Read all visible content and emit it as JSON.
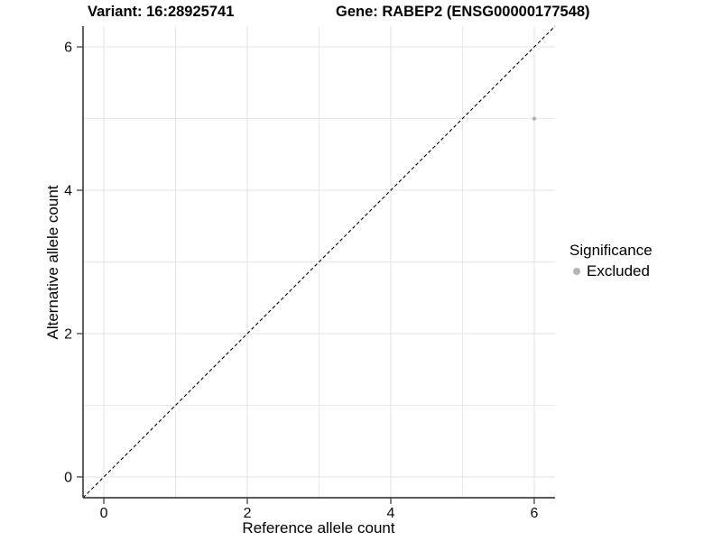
{
  "header": {
    "variant_title": "Variant: 16:28925741",
    "gene_title": "Gene: RABEP2 (ENSG00000177548)"
  },
  "chart_data": {
    "type": "scatter",
    "xlabel": "Reference allele count",
    "ylabel": "Alternative allele count",
    "xlim": [
      -0.29,
      6.29
    ],
    "ylim": [
      -0.29,
      6.29
    ],
    "x_ticks": [
      0,
      2,
      4,
      6
    ],
    "y_ticks": [
      0,
      2,
      4,
      6
    ],
    "x_gridlines": [
      0,
      1,
      2,
      3,
      4,
      5,
      6
    ],
    "y_gridlines": [
      0,
      1,
      2,
      3,
      4,
      5,
      6
    ],
    "grid": true,
    "identity_line": {
      "style": "dashed",
      "x1": -0.29,
      "y1": -0.29,
      "x2": 6.29,
      "y2": 6.29
    },
    "points": [
      {
        "x": 6,
        "y": 5,
        "series": "Excluded"
      }
    ],
    "series": [
      {
        "name": "Excluded",
        "color": "#b4b4b4"
      }
    ],
    "legend": {
      "title": "Significance",
      "position": "right",
      "items": [
        {
          "label": "Excluded",
          "color": "#b4b4b4"
        }
      ]
    }
  },
  "colors": {
    "background": "#ffffff",
    "grid": "#e6e6e6",
    "axis": "#444444",
    "identity_line": "#000000",
    "text": "#000000",
    "point": "#b4b4b4"
  }
}
